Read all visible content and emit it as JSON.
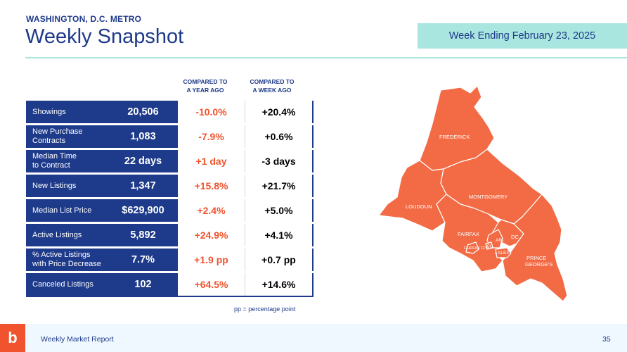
{
  "header": {
    "region": "WASHINGTON, D.C. METRO",
    "title": "Weekly Snapshot",
    "week_ending": "Week Ending February 23, 2025"
  },
  "columns": {
    "year_line1": "COMPARED TO",
    "year_line2": "A YEAR AGO",
    "week_line1": "COMPARED TO",
    "week_line2": "A WEEK AGO"
  },
  "rows": [
    {
      "label1": "Showings",
      "label2": "",
      "value": "20,506",
      "yoy": "-10.0%",
      "wow": "+20.4%"
    },
    {
      "label1": "New Purchase",
      "label2": "Contracts",
      "value": "1,083",
      "yoy": "-7.9%",
      "wow": "+0.6%"
    },
    {
      "label1": "Median Time",
      "label2": "to Contract",
      "value": "22 days",
      "yoy": "+1 day",
      "wow": "-3 days"
    },
    {
      "label1": "New Listings",
      "label2": "",
      "value": "1,347",
      "yoy": "+15.8%",
      "wow": "+21.7%"
    },
    {
      "label1": "Median List Price",
      "label2": "",
      "value": "$629,900",
      "yoy": "+2.4%",
      "wow": "+5.0%"
    },
    {
      "label1": "Active Listings",
      "label2": "",
      "value": "5,892",
      "yoy": "+24.9%",
      "wow": "+4.1%"
    },
    {
      "label1": "% Active Listings",
      "label2": "with Price Decrease",
      "value": "7.7%",
      "yoy": "+1.9 pp",
      "wow": "+0.7 pp"
    },
    {
      "label1": "Canceled Listings",
      "label2": "",
      "value": "102",
      "yoy": "+64.5%",
      "wow": "+14.6%"
    }
  ],
  "footnote": "pp = percentage point",
  "map": {
    "fill": "#f26b45",
    "labels": {
      "frederick": "FREDERICK",
      "loudoun": "LOUDOUN",
      "montgomery": "MONTGOMERY",
      "fairfax": "FAIRFAX",
      "fairfax_city": "FAIRFAX CITY",
      "fc": "FC",
      "arl": "ARL",
      "alex": "ALEX",
      "dc": "DC",
      "prince_georges_1": "PRINCE",
      "prince_georges_2": "GEORGE'S"
    }
  },
  "footer": {
    "logo": "b",
    "report_name": "Weekly Market Report",
    "page_number": "35"
  },
  "colors": {
    "navy": "#1e3a8a",
    "orange": "#f0532d",
    "teal": "#2ec4a3",
    "mint": "#a9e6df"
  }
}
